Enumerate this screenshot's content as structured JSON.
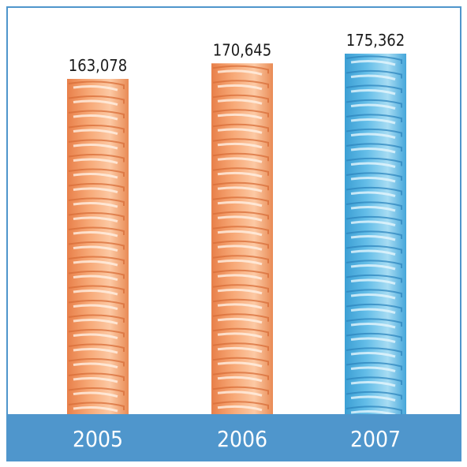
{
  "chart_data": {
    "type": "bar",
    "title": "",
    "xlabel": "",
    "ylabel": "",
    "categories": [
      "2005",
      "2006",
      "2007"
    ],
    "values": [
      163078,
      170645,
      175362
    ],
    "value_labels": [
      "163,078",
      "170,645",
      "175,362"
    ],
    "bar_colors": [
      "#f5a06d",
      "#f5a06d",
      "#58b3e0"
    ],
    "axis_band_color": "#4f96cc",
    "grid": false,
    "legend": "none"
  }
}
